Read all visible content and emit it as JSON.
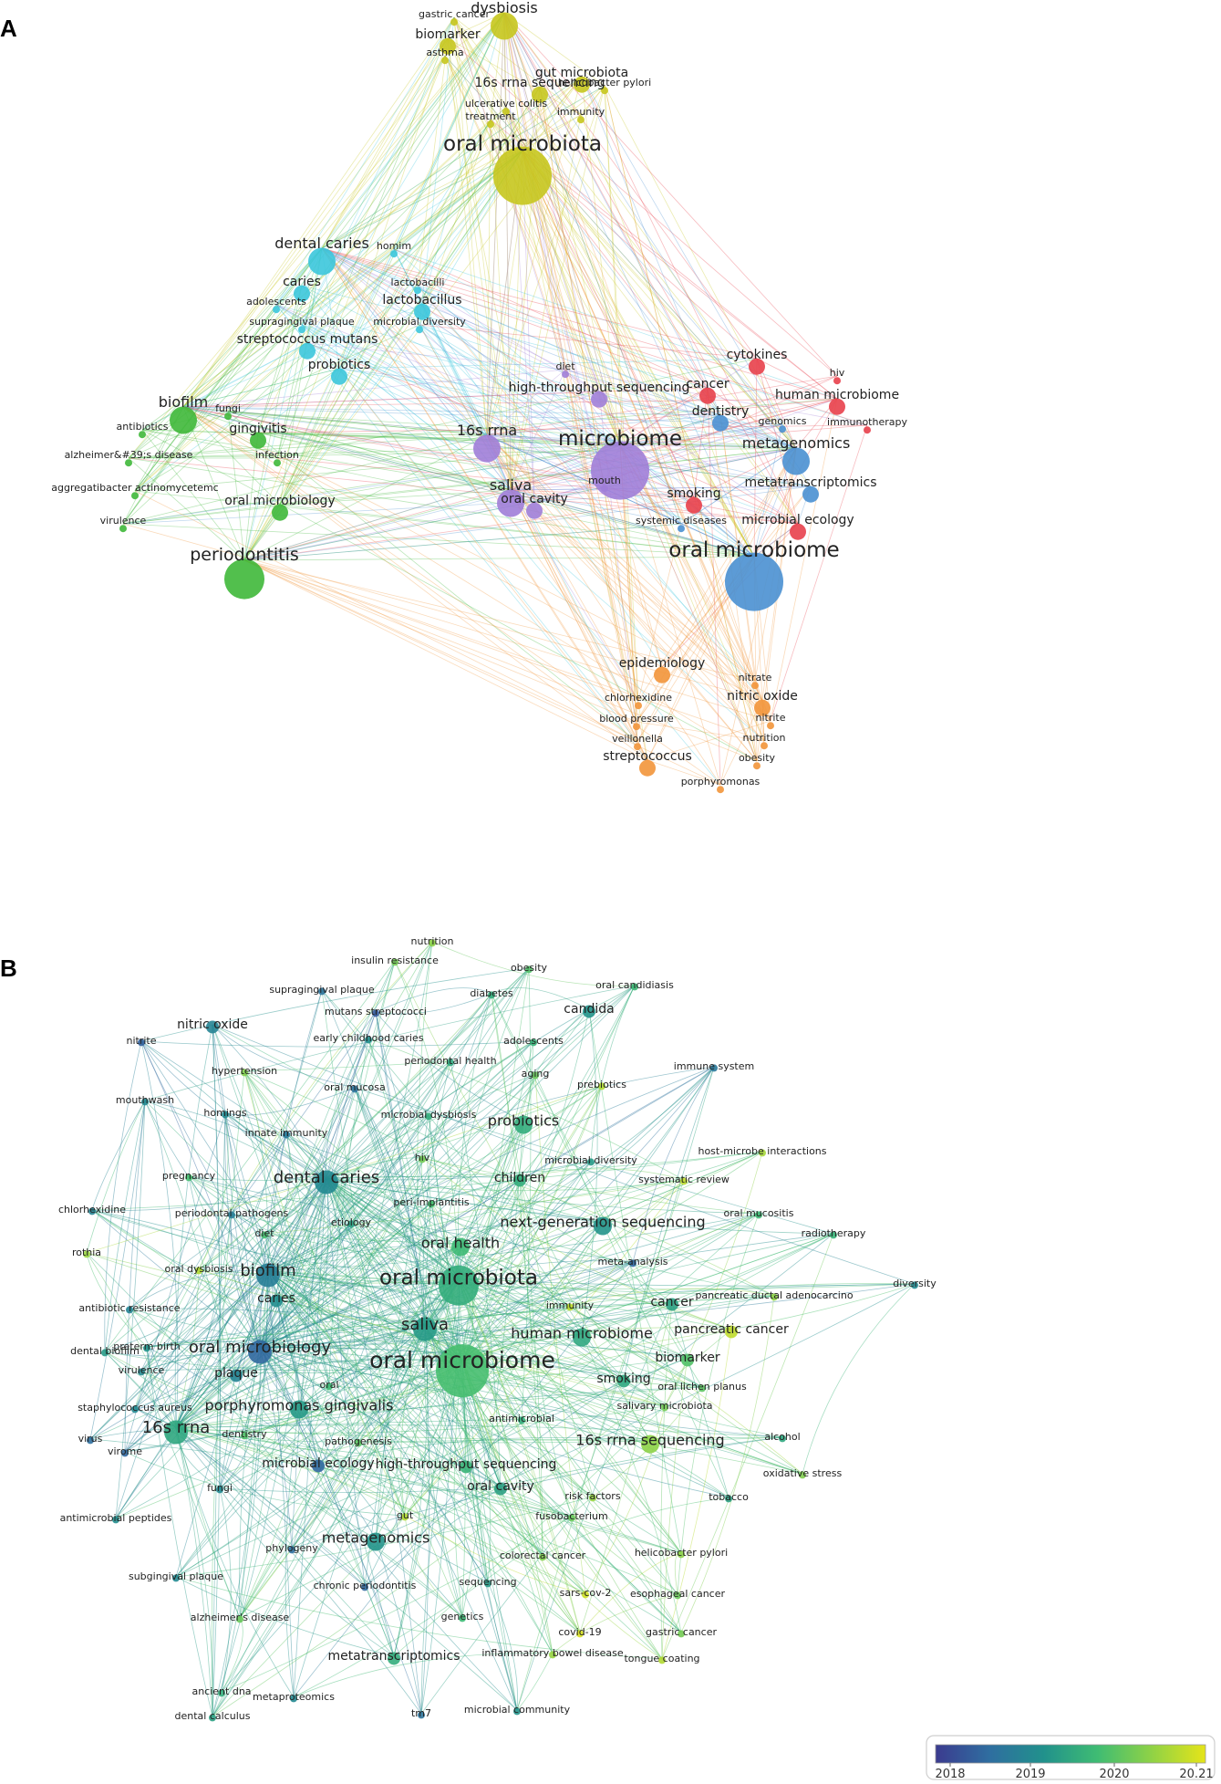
{
  "panels": [
    {
      "letter": "A",
      "colors": {
        "yellow": "#c6c61e",
        "cyan": "#3cc6dc",
        "green": "#3fb83a",
        "purple": "#a07ed8",
        "red": "#e8404b",
        "blue": "#4a90d2",
        "orange": "#f2953a"
      },
      "nodes": [
        {
          "label": "dysbiosis",
          "c": "yellow",
          "w": 3
        },
        {
          "label": "gastric cancer",
          "c": "yellow",
          "w": 1
        },
        {
          "label": "biomarker",
          "c": "yellow",
          "w": 2
        },
        {
          "label": "asthma",
          "c": "yellow",
          "w": 1
        },
        {
          "label": "gut microbiota",
          "c": "yellow",
          "w": 2
        },
        {
          "label": "helicobacter pylori",
          "c": "yellow",
          "w": 1
        },
        {
          "label": "16s rrna sequencing",
          "c": "yellow",
          "w": 2
        },
        {
          "label": "ulcerative colitis",
          "c": "yellow",
          "w": 1
        },
        {
          "label": "immunity",
          "c": "yellow",
          "w": 1
        },
        {
          "label": "treatment",
          "c": "yellow",
          "w": 1
        },
        {
          "label": "oral microbiota",
          "c": "yellow",
          "w": 5
        },
        {
          "label": "dental caries",
          "c": "cyan",
          "w": 3
        },
        {
          "label": "homim",
          "c": "cyan",
          "w": 1
        },
        {
          "label": "caries",
          "c": "cyan",
          "w": 2
        },
        {
          "label": "lactobacilli",
          "c": "cyan",
          "w": 1
        },
        {
          "label": "adolescents",
          "c": "cyan",
          "w": 1
        },
        {
          "label": "lactobacillus",
          "c": "cyan",
          "w": 2
        },
        {
          "label": "supragingival plaque",
          "c": "cyan",
          "w": 1
        },
        {
          "label": "microbial diversity",
          "c": "cyan",
          "w": 1
        },
        {
          "label": "streptococcus mutans",
          "c": "cyan",
          "w": 2
        },
        {
          "label": "probiotics",
          "c": "cyan",
          "w": 2
        },
        {
          "label": "biofilm",
          "c": "green",
          "w": 3
        },
        {
          "label": "fungi",
          "c": "green",
          "w": 1
        },
        {
          "label": "antibiotics",
          "c": "green",
          "w": 1
        },
        {
          "label": "gingivitis",
          "c": "green",
          "w": 2
        },
        {
          "label": "alzheimer&#39;s disease",
          "c": "green",
          "w": 1
        },
        {
          "label": "infection",
          "c": "green",
          "w": 1
        },
        {
          "label": "aggregatibacter actinomycetemc",
          "c": "green",
          "w": 1
        },
        {
          "label": "oral microbiology",
          "c": "green",
          "w": 2
        },
        {
          "label": "virulence",
          "c": "green",
          "w": 1
        },
        {
          "label": "periodontitis",
          "c": "green",
          "w": 4
        },
        {
          "label": "diet",
          "c": "purple",
          "w": 1
        },
        {
          "label": "high-throughput sequencing",
          "c": "purple",
          "w": 2
        },
        {
          "label": "16s rrna",
          "c": "purple",
          "w": 3
        },
        {
          "label": "microbiome",
          "c": "purple",
          "w": 5
        },
        {
          "label": "saliva",
          "c": "purple",
          "w": 3
        },
        {
          "label": "mouth",
          "c": "purple",
          "w": 1
        },
        {
          "label": "oral cavity",
          "c": "purple",
          "w": 2
        },
        {
          "label": "cytokines",
          "c": "red",
          "w": 2
        },
        {
          "label": "cancer",
          "c": "red",
          "w": 2
        },
        {
          "label": "hiv",
          "c": "red",
          "w": 1
        },
        {
          "label": "human microbiome",
          "c": "red",
          "w": 2
        },
        {
          "label": "dentistry",
          "c": "blue",
          "w": 2
        },
        {
          "label": "genomics",
          "c": "blue",
          "w": 1
        },
        {
          "label": "immunotherapy",
          "c": "red",
          "w": 1
        },
        {
          "label": "metagenomics",
          "c": "blue",
          "w": 3
        },
        {
          "label": "metatranscriptomics",
          "c": "blue",
          "w": 2
        },
        {
          "label": "smoking",
          "c": "red",
          "w": 2
        },
        {
          "label": "systemic diseases",
          "c": "blue",
          "w": 1
        },
        {
          "label": "microbial ecology",
          "c": "red",
          "w": 2
        },
        {
          "label": "oral microbiome",
          "c": "blue",
          "w": 5
        },
        {
          "label": "epidemiology",
          "c": "orange",
          "w": 2
        },
        {
          "label": "nitrate",
          "c": "orange",
          "w": 1
        },
        {
          "label": "chlorhexidine",
          "c": "orange",
          "w": 1
        },
        {
          "label": "nitric oxide",
          "c": "orange",
          "w": 2
        },
        {
          "label": "blood pressure",
          "c": "orange",
          "w": 1
        },
        {
          "label": "nitrite",
          "c": "orange",
          "w": 1
        },
        {
          "label": "veillonella",
          "c": "orange",
          "w": 1
        },
        {
          "label": "nutrition",
          "c": "orange",
          "w": 1
        },
        {
          "label": "streptococcus",
          "c": "orange",
          "w": 2
        },
        {
          "label": "obesity",
          "c": "orange",
          "w": 1
        },
        {
          "label": "porphyromonas",
          "c": "orange",
          "w": 1
        }
      ]
    },
    {
      "letter": "B",
      "legend": {
        "ticks": [
          "2018",
          "2019",
          "2020",
          "20.21"
        ],
        "range": [
          2017.8,
          2021.2
        ],
        "gradient": [
          "#3b3b8f",
          "#2f6ea0",
          "#21918c",
          "#3fbc73",
          "#8fd246",
          "#e5e419"
        ]
      },
      "nodes": [
        {
          "label": "nutrition",
          "y": 2020.5,
          "w": 1
        },
        {
          "label": "insulin resistance",
          "y": 2020.3,
          "w": 1
        },
        {
          "label": "obesity",
          "y": 2020.0,
          "w": 1
        },
        {
          "label": "supragingival plaque",
          "y": 2018.6,
          "w": 1
        },
        {
          "label": "diabetes",
          "y": 2019.6,
          "w": 1
        },
        {
          "label": "oral candidiasis",
          "y": 2019.8,
          "w": 1
        },
        {
          "label": "mutans streptococci",
          "y": 2018.2,
          "w": 1
        },
        {
          "label": "candida",
          "y": 2019.2,
          "w": 2
        },
        {
          "label": "nitric oxide",
          "y": 2018.9,
          "w": 2
        },
        {
          "label": "early childhood caries",
          "y": 2019.1,
          "w": 1
        },
        {
          "label": "adolescents",
          "y": 2019.7,
          "w": 1
        },
        {
          "label": "nitrite",
          "y": 2018.3,
          "w": 1
        },
        {
          "label": "periodontal health",
          "y": 2019.5,
          "w": 1
        },
        {
          "label": "immune system",
          "y": 2018.7,
          "w": 1
        },
        {
          "label": "hypertension",
          "y": 2020.4,
          "w": 1
        },
        {
          "label": "aging",
          "y": 2020.2,
          "w": 1
        },
        {
          "label": "oral mucosa",
          "y": 2018.6,
          "w": 1
        },
        {
          "label": "prebiotics",
          "y": 2020.8,
          "w": 1
        },
        {
          "label": "mouthwash",
          "y": 2019.0,
          "w": 1
        },
        {
          "label": "homings",
          "y": 2019.0,
          "w": 1
        },
        {
          "label": "microbial dysbiosis",
          "y": 2019.6,
          "w": 1
        },
        {
          "label": "probiotics",
          "y": 2019.6,
          "w": 3
        },
        {
          "label": "innate immunity",
          "y": 2018.7,
          "w": 1
        },
        {
          "label": "host-microbe interactions",
          "y": 2020.7,
          "w": 1
        },
        {
          "label": "hiv",
          "y": 2020.3,
          "w": 1
        },
        {
          "label": "microbial diversity",
          "y": 2019.3,
          "w": 1
        },
        {
          "label": "pregnancy",
          "y": 2019.9,
          "w": 1
        },
        {
          "label": "dental caries",
          "y": 2019.0,
          "w": 4
        },
        {
          "label": "children",
          "y": 2019.6,
          "w": 2
        },
        {
          "label": "systematic review",
          "y": 2020.9,
          "w": 1
        },
        {
          "label": "chlorhexidine",
          "y": 2018.9,
          "w": 1
        },
        {
          "label": "periodontal pathogens",
          "y": 2018.8,
          "w": 1
        },
        {
          "label": "peri-implantitis",
          "y": 2019.9,
          "w": 1
        },
        {
          "label": "oral mucositis",
          "y": 2019.8,
          "w": 1
        },
        {
          "label": "etiology",
          "y": 2019.4,
          "w": 1
        },
        {
          "label": "next-generation sequencing",
          "y": 2019.2,
          "w": 3
        },
        {
          "label": "radiotherapy",
          "y": 2019.7,
          "w": 1
        },
        {
          "label": "diet",
          "y": 2019.9,
          "w": 1
        },
        {
          "label": "oral health",
          "y": 2019.8,
          "w": 3
        },
        {
          "label": "rothia",
          "y": 2020.6,
          "w": 1
        },
        {
          "label": "meta-analysis",
          "y": 2018.4,
          "w": 1
        },
        {
          "label": "biofilm",
          "y": 2018.8,
          "w": 4
        },
        {
          "label": "oral dysbiosis",
          "y": 2020.8,
          "w": 1
        },
        {
          "label": "oral microbiota",
          "y": 2019.6,
          "w": 6
        },
        {
          "label": "diversity",
          "y": 2019.0,
          "w": 1
        },
        {
          "label": "caries",
          "y": 2019.1,
          "w": 2
        },
        {
          "label": "immunity",
          "y": 2020.9,
          "w": 1
        },
        {
          "label": "cancer",
          "y": 2019.4,
          "w": 2
        },
        {
          "label": "pancreatic ductal adenocarcino",
          "y": 2020.5,
          "w": 1
        },
        {
          "label": "antibiotic resistance",
          "y": 2018.9,
          "w": 1
        },
        {
          "label": "saliva",
          "y": 2019.3,
          "w": 4
        },
        {
          "label": "human microbiome",
          "y": 2019.5,
          "w": 3
        },
        {
          "label": "pancreatic cancer",
          "y": 2020.9,
          "w": 2
        },
        {
          "label": "dental biofilm",
          "y": 2019.3,
          "w": 1
        },
        {
          "label": "preterm birth",
          "y": 2019.2,
          "w": 1
        },
        {
          "label": "oral microbiology",
          "y": 2018.4,
          "w": 4
        },
        {
          "label": "oral microbiome",
          "y": 2019.9,
          "w": 7
        },
        {
          "label": "biomarker",
          "y": 2020.0,
          "w": 2
        },
        {
          "label": "virulence",
          "y": 2019.0,
          "w": 1
        },
        {
          "label": "plaque",
          "y": 2018.9,
          "w": 2
        },
        {
          "label": "smoking",
          "y": 2019.5,
          "w": 2
        },
        {
          "label": "oral lichen planus",
          "y": 2020.1,
          "w": 1
        },
        {
          "label": "oral",
          "y": 2019.8,
          "w": 1
        },
        {
          "label": "staphylococcus aureus",
          "y": 2019.0,
          "w": 1
        },
        {
          "label": "porphyromonas gingivalis",
          "y": 2019.3,
          "w": 3
        },
        {
          "label": "salivary microbiota",
          "y": 2020.3,
          "w": 1
        },
        {
          "label": "16s rrna",
          "y": 2019.5,
          "w": 4
        },
        {
          "label": "antimicrobial",
          "y": 2019.6,
          "w": 1
        },
        {
          "label": "dentistry",
          "y": 2020.0,
          "w": 1
        },
        {
          "label": "virus",
          "y": 2018.5,
          "w": 1
        },
        {
          "label": "virome",
          "y": 2018.4,
          "w": 1
        },
        {
          "label": "pathogenesis",
          "y": 2020.1,
          "w": 1
        },
        {
          "label": "16s rrna sequencing",
          "y": 2020.5,
          "w": 3
        },
        {
          "label": "alcohol",
          "y": 2019.5,
          "w": 1
        },
        {
          "label": "microbial ecology",
          "y": 2018.4,
          "w": 2
        },
        {
          "label": "high-throughput sequencing",
          "y": 2019.7,
          "w": 2
        },
        {
          "label": "oxidative stress",
          "y": 2020.4,
          "w": 1
        },
        {
          "label": "fungi",
          "y": 2019.0,
          "w": 1
        },
        {
          "label": "oral cavity",
          "y": 2019.4,
          "w": 2
        },
        {
          "label": "risk factors",
          "y": 2020.6,
          "w": 1
        },
        {
          "label": "tobacco",
          "y": 2019.4,
          "w": 1
        },
        {
          "label": "fusobacterium",
          "y": 2020.2,
          "w": 1
        },
        {
          "label": "antimicrobial peptides",
          "y": 2019.1,
          "w": 1
        },
        {
          "label": "gut",
          "y": 2020.8,
          "w": 1
        },
        {
          "label": "metagenomics",
          "y": 2019.2,
          "w": 3
        },
        {
          "label": "phylogeny",
          "y": 2018.5,
          "w": 1
        },
        {
          "label": "colorectal cancer",
          "y": 2020.4,
          "w": 1
        },
        {
          "label": "helicobacter pylori",
          "y": 2020.5,
          "w": 1
        },
        {
          "label": "subgingival plaque",
          "y": 2019.0,
          "w": 1
        },
        {
          "label": "chronic periodontitis",
          "y": 2018.4,
          "w": 1
        },
        {
          "label": "sequencing",
          "y": 2019.3,
          "w": 1
        },
        {
          "label": "sars-cov-2",
          "y": 2021.0,
          "w": 1
        },
        {
          "label": "esophageal cancer",
          "y": 2020.2,
          "w": 1
        },
        {
          "label": "alzheimer's disease",
          "y": 2020.2,
          "w": 1
        },
        {
          "label": "genetics",
          "y": 2019.8,
          "w": 1
        },
        {
          "label": "covid-19",
          "y": 2021.1,
          "w": 1
        },
        {
          "label": "gastric cancer",
          "y": 2020.3,
          "w": 1
        },
        {
          "label": "metatranscriptomics",
          "y": 2019.6,
          "w": 2
        },
        {
          "label": "inflammatory bowel disease",
          "y": 2020.6,
          "w": 1
        },
        {
          "label": "tongue coating",
          "y": 2020.8,
          "w": 1
        },
        {
          "label": "ancient dna",
          "y": 2019.6,
          "w": 1
        },
        {
          "label": "metaproteomics",
          "y": 2019.0,
          "w": 1
        },
        {
          "label": "dental calculus",
          "y": 2019.4,
          "w": 1
        },
        {
          "label": "tm7",
          "y": 2018.6,
          "w": 1
        },
        {
          "label": "microbial community",
          "y": 2019.2,
          "w": 1
        }
      ]
    }
  ]
}
